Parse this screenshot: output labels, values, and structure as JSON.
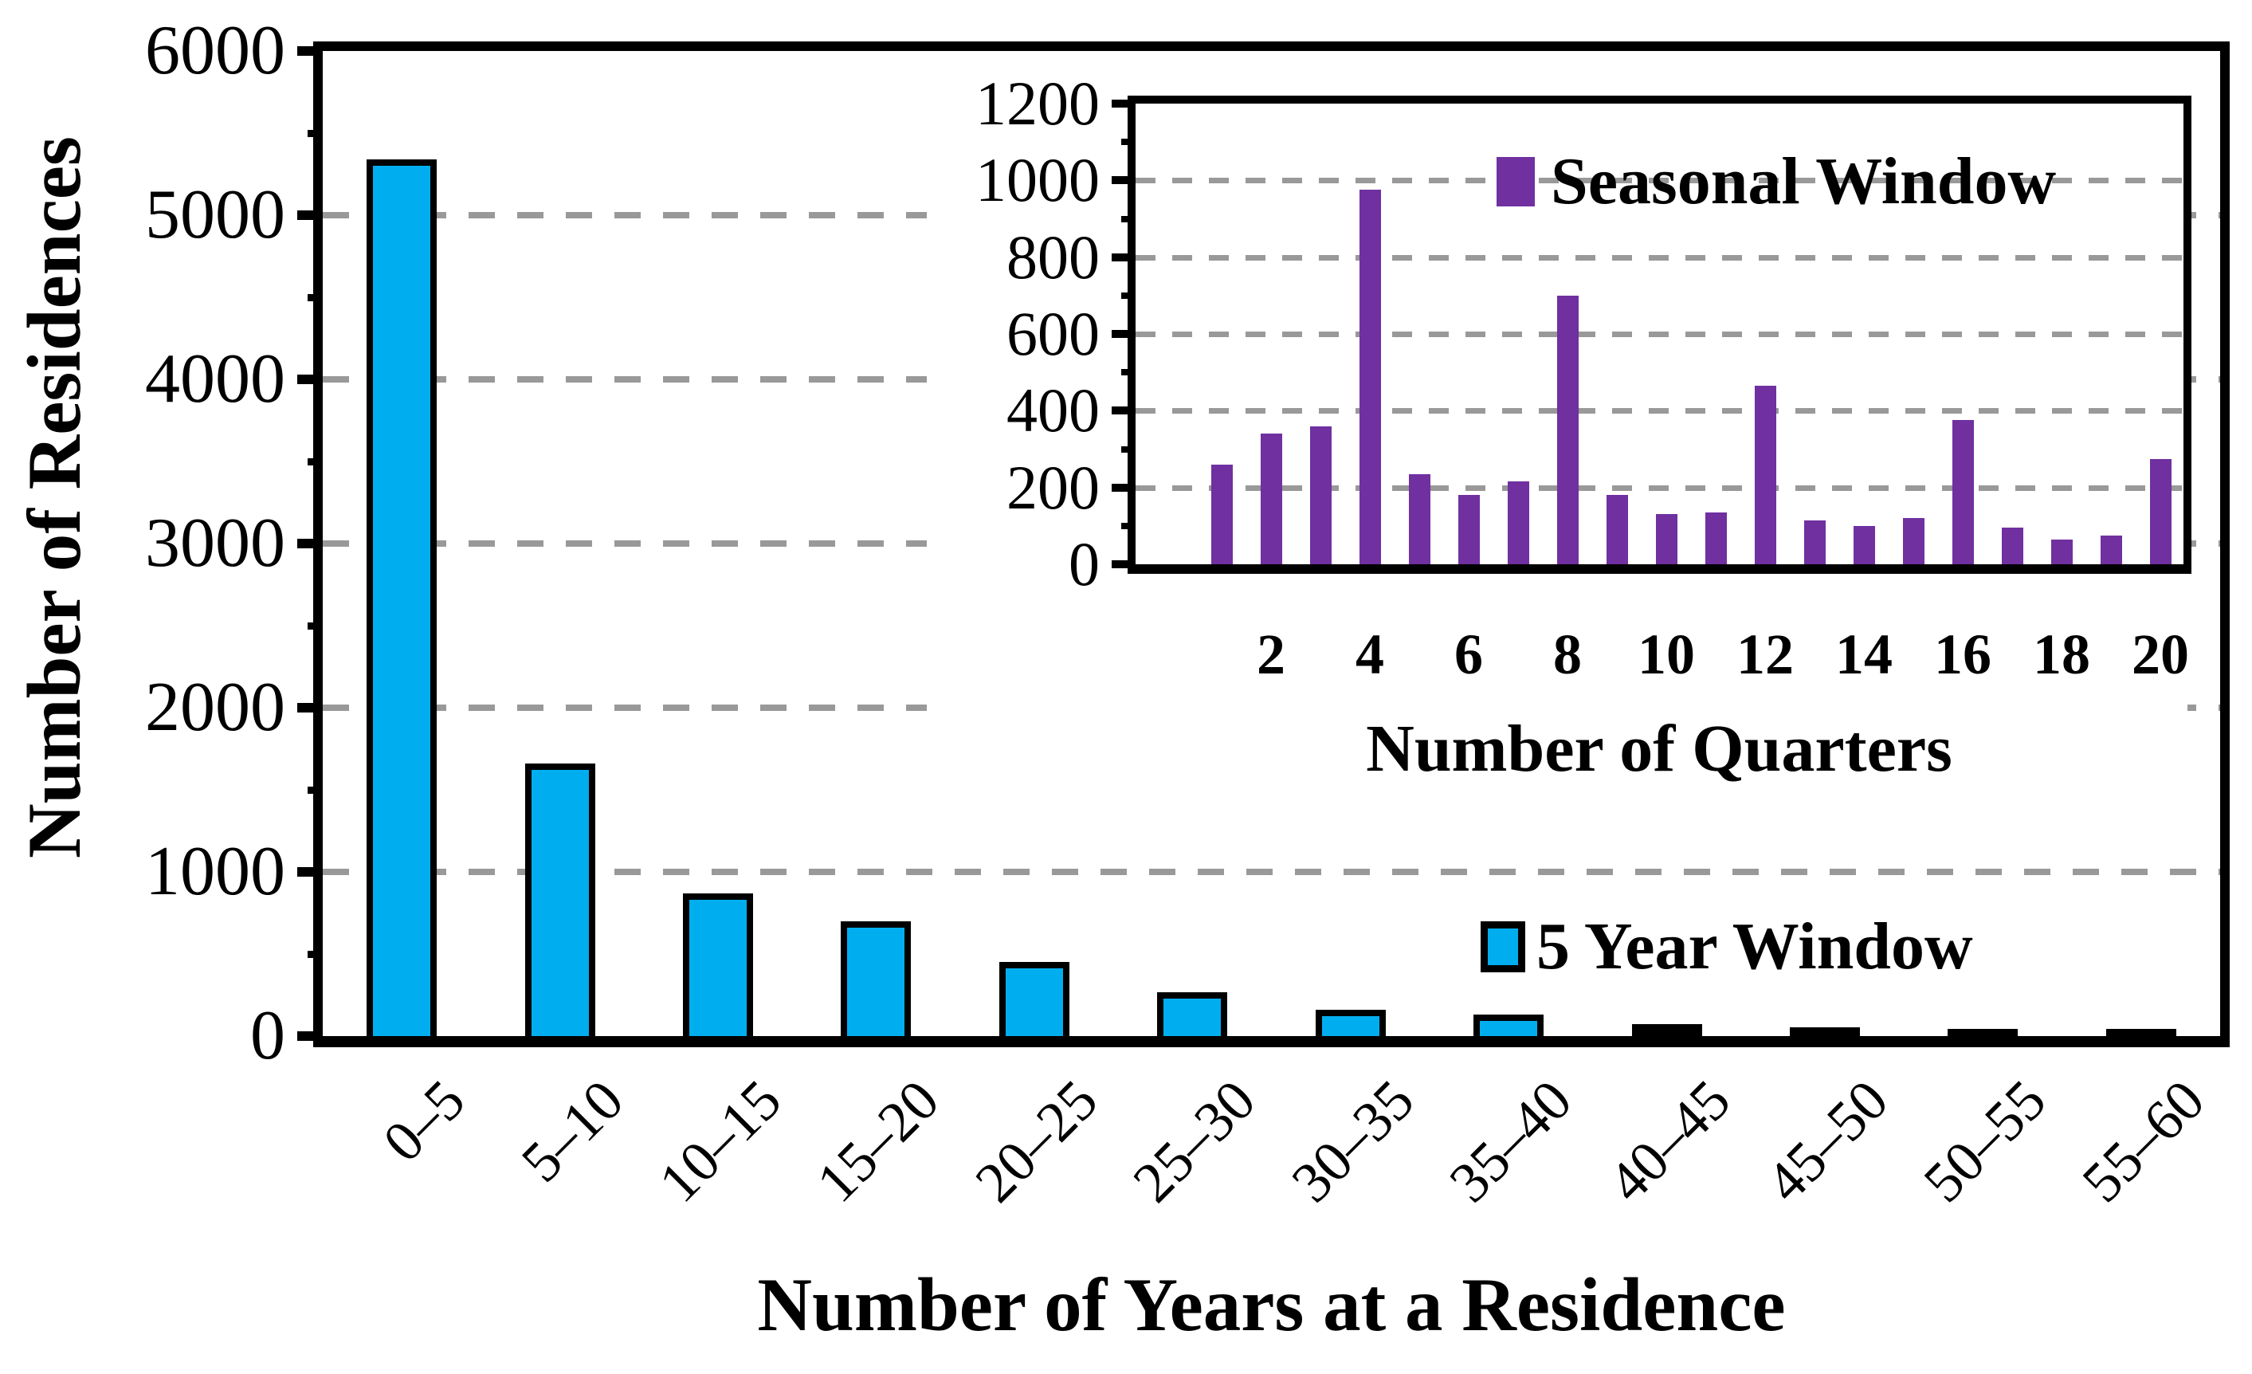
{
  "chart_data": [
    {
      "id": "main",
      "type": "bar",
      "title": "",
      "xlabel": "Number of Years at a Residence",
      "ylabel": "Number of Residences",
      "legend": [
        {
          "label": "5 Year Window",
          "color": "#00AEEF",
          "border": "#000000"
        }
      ],
      "legend_position": "inside-right-lower",
      "grid": "horizontal-dashed",
      "categories": [
        "0–5",
        "5–10",
        "10–15",
        "15–20",
        "20–25",
        "25–30",
        "30–35",
        "35–40",
        "40–45",
        "45–50",
        "50–55",
        "55–60"
      ],
      "values": [
        5340,
        1660,
        870,
        700,
        450,
        265,
        160,
        130,
        75,
        55,
        45,
        22
      ],
      "ylim": [
        0,
        6000
      ],
      "ytick_interval": 1000,
      "ytick_minor_interval": 500,
      "ytick_labels": [
        "0",
        "1000",
        "2000",
        "3000",
        "4000",
        "5000",
        "6000"
      ],
      "bar_color": "#00AEEF",
      "bar_border_color": "#000000"
    },
    {
      "id": "inset",
      "type": "bar",
      "title": "",
      "xlabel": "Number of Quarters",
      "ylabel": "",
      "legend": [
        {
          "label": "Seasonal Window",
          "color": "#7030A0"
        }
      ],
      "legend_position": "inside-top-center",
      "grid": "horizontal-dashed",
      "x": [
        1,
        2,
        3,
        4,
        5,
        6,
        7,
        8,
        9,
        10,
        11,
        12,
        13,
        14,
        15,
        16,
        17,
        18,
        19,
        20
      ],
      "xtick_labels": [
        "2",
        "4",
        "6",
        "8",
        "10",
        "12",
        "14",
        "16",
        "18",
        "20"
      ],
      "values": [
        260,
        340,
        360,
        975,
        235,
        180,
        215,
        700,
        180,
        130,
        135,
        465,
        115,
        100,
        120,
        375,
        95,
        65,
        75,
        275
      ],
      "ylim": [
        0,
        1200
      ],
      "ytick_interval": 200,
      "ytick_minor_interval": 100,
      "ytick_labels": [
        "0",
        "200",
        "400",
        "600",
        "800",
        "1000",
        "1200"
      ],
      "bar_color": "#7030A0"
    }
  ],
  "colors": {
    "background": "#ffffff",
    "axis": "#000000",
    "gridline": "#999999"
  }
}
